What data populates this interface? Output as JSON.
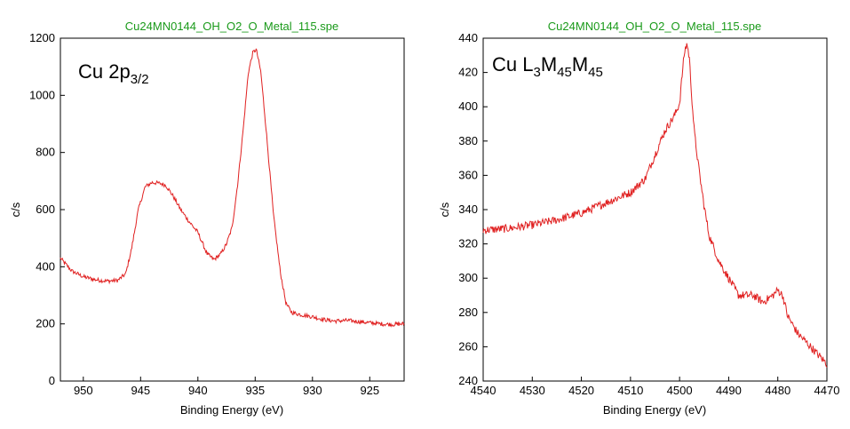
{
  "chart_data": [
    {
      "type": "line",
      "title": "Cu24MN0144_OH_O2_O_Metal_115.spe",
      "annotation": {
        "main": "Cu 2p",
        "sub": "3/2"
      },
      "xlabel": "Binding Energy (eV)",
      "ylabel": "c/s",
      "xlim": [
        952,
        922
      ],
      "ylim": [
        0,
        1200
      ],
      "xticks": [
        950,
        945,
        940,
        935,
        930,
        925
      ],
      "yticks": [
        0,
        200,
        400,
        600,
        800,
        1000,
        1200
      ],
      "grid": false,
      "line_color": "#e02020",
      "key_points": [
        [
          952,
          430
        ],
        [
          951,
          385
        ],
        [
          950,
          365
        ],
        [
          949,
          355
        ],
        [
          948,
          350
        ],
        [
          947,
          352
        ],
        [
          946.3,
          375
        ],
        [
          945.8,
          460
        ],
        [
          945.2,
          600
        ],
        [
          944.6,
          680
        ],
        [
          944,
          695
        ],
        [
          943.3,
          692
        ],
        [
          942.8,
          685
        ],
        [
          942.2,
          650
        ],
        [
          941.5,
          600
        ],
        [
          940.8,
          560
        ],
        [
          940,
          520
        ],
        [
          939.2,
          445
        ],
        [
          938.6,
          425
        ],
        [
          938,
          445
        ],
        [
          937.5,
          480
        ],
        [
          937,
          540
        ],
        [
          936.5,
          700
        ],
        [
          936,
          900
        ],
        [
          935.6,
          1080
        ],
        [
          935.2,
          1150
        ],
        [
          934.9,
          1160
        ],
        [
          934.5,
          1080
        ],
        [
          934,
          860
        ],
        [
          933.4,
          580
        ],
        [
          932.8,
          380
        ],
        [
          932.3,
          270
        ],
        [
          931.8,
          240
        ],
        [
          931,
          232
        ],
        [
          930,
          225
        ],
        [
          929,
          215
        ],
        [
          928,
          210
        ],
        [
          927,
          212
        ],
        [
          926,
          208
        ],
        [
          925,
          204
        ],
        [
          924,
          200
        ],
        [
          923,
          198
        ],
        [
          922,
          200
        ]
      ]
    },
    {
      "type": "line",
      "title": "Cu24MN0144_OH_O2_O_Metal_115.spe",
      "annotation": {
        "main": "Cu L",
        "sub1": "3",
        "mid1": "M",
        "sub2": "45",
        "mid2": "M",
        "sub3": "45"
      },
      "xlabel": "Binding Energy (eV)",
      "ylabel": "c/s",
      "xlim": [
        4540,
        4470
      ],
      "ylim": [
        240,
        440
      ],
      "xticks": [
        4540,
        4530,
        4520,
        4510,
        4500,
        4490,
        4480,
        4470
      ],
      "yticks": [
        240,
        260,
        280,
        300,
        320,
        340,
        360,
        380,
        400,
        420,
        440
      ],
      "grid": false,
      "line_color": "#e02020",
      "key_points": [
        [
          4540,
          328
        ],
        [
          4535,
          329
        ],
        [
          4530,
          331
        ],
        [
          4525,
          334
        ],
        [
          4520,
          338
        ],
        [
          4515,
          344
        ],
        [
          4510,
          350
        ],
        [
          4507,
          358
        ],
        [
          4505,
          372
        ],
        [
          4503,
          386
        ],
        [
          4501,
          395
        ],
        [
          4500,
          402
        ],
        [
          4499.5,
          418
        ],
        [
          4499,
          432
        ],
        [
          4498.5,
          437
        ],
        [
          4498,
          428
        ],
        [
          4497.5,
          405
        ],
        [
          4497,
          385
        ],
        [
          4496,
          362
        ],
        [
          4495,
          342
        ],
        [
          4494,
          325
        ],
        [
          4492,
          310
        ],
        [
          4490,
          300
        ],
        [
          4488,
          290
        ],
        [
          4485,
          290
        ],
        [
          4483,
          286
        ],
        [
          4481,
          290
        ],
        [
          4480,
          293
        ],
        [
          4479,
          290
        ],
        [
          4478,
          278
        ],
        [
          4476,
          268
        ],
        [
          4474,
          262
        ],
        [
          4472,
          256
        ],
        [
          4470,
          250
        ]
      ]
    }
  ]
}
